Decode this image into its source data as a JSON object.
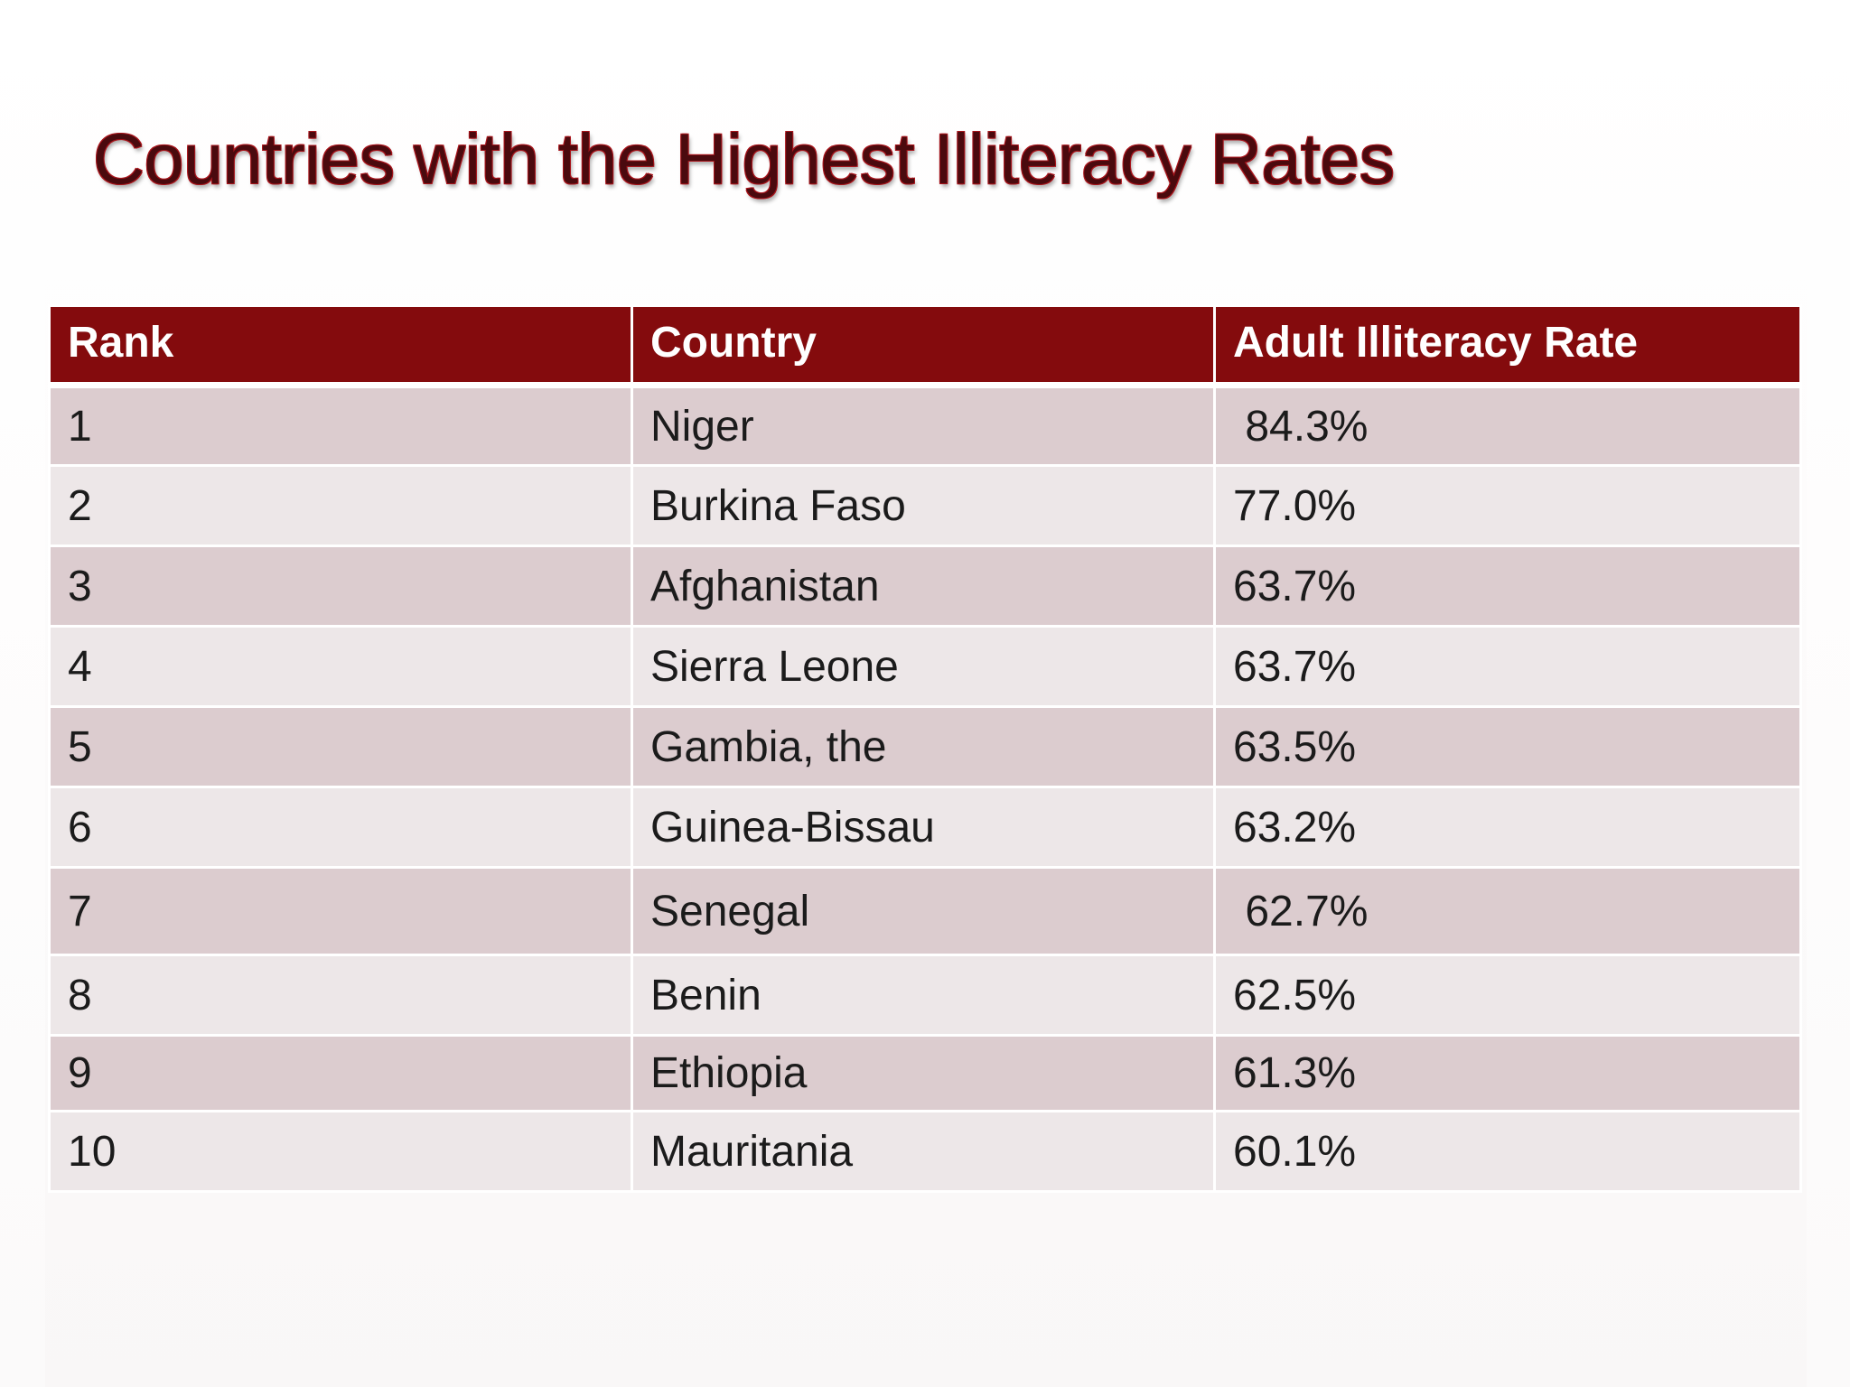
{
  "title": "Countries with the Highest Illiteracy Rates",
  "table": {
    "headers": [
      "Rank",
      "Country",
      "Adult Illiteracy Rate"
    ],
    "rows": [
      {
        "rank": "1",
        "country": "Niger",
        "rate": " 84.3%"
      },
      {
        "rank": "2",
        "country": "Burkina Faso",
        "rate": "77.0%"
      },
      {
        "rank": "3",
        "country": "Afghanistan",
        "rate": "63.7%"
      },
      {
        "rank": "4",
        "country": "Sierra Leone",
        "rate": "63.7%"
      },
      {
        "rank": "5",
        "country": "Gambia, the",
        "rate": "63.5%"
      },
      {
        "rank": "6",
        "country": "Guinea-Bissau",
        "rate": "63.2%"
      },
      {
        "rank": "7",
        "country": "Senegal",
        "rate": " 62.7%"
      },
      {
        "rank": "8",
        "country": "Benin",
        "rate": "62.5%"
      },
      {
        "rank": "9",
        "country": "Ethiopia",
        "rate": "61.3%"
      },
      {
        "rank": "10",
        "country": "Mauritania",
        "rate": "60.1%"
      }
    ]
  },
  "colors": {
    "header_background": "#840b0d",
    "title_color": "#4a0a0e",
    "row_odd": "#dccccf",
    "row_even": "#ede7e8"
  }
}
